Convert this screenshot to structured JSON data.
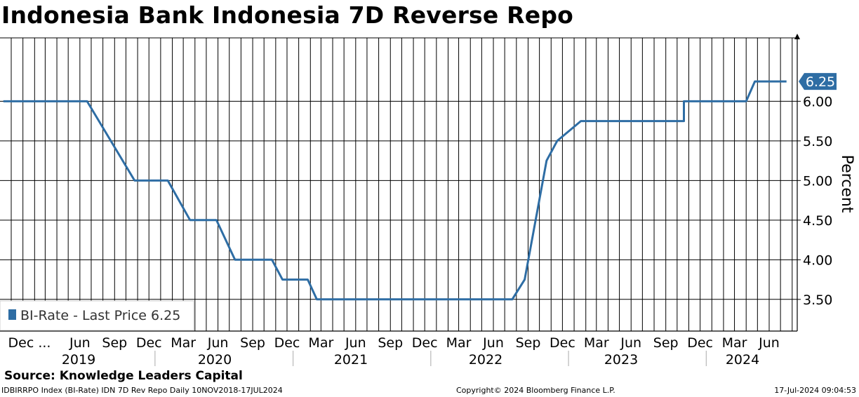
{
  "title": "Indonesia Bank Indonesia 7D Reverse Repo",
  "source": "Source: Knowledge Leaders Capital",
  "footer": {
    "left": "IDBIRRPO Index (BI-Rate) IDN 7D Rev Repo  Daily 10NOV2018-17JUL2024",
    "center": "Copyright© 2024 Bloomberg Finance L.P.",
    "right": "17-Jul-2024 09:04:53"
  },
  "colors": {
    "series": "#2e6da4",
    "grid": "#000000",
    "background": "#ffffff"
  },
  "chart_data": {
    "type": "line",
    "ylabel": "Percent",
    "ylim": [
      3.1,
      6.8
    ],
    "y_ticks": [
      "3.50",
      "4.00",
      "4.50",
      "5.00",
      "5.50",
      "6.00"
    ],
    "x_range": [
      "2018-11-10",
      "2024-07-17"
    ],
    "x_tick_labels": [
      {
        "label": "Dec ...",
        "date": "2018-12-01"
      },
      {
        "label": "Jun",
        "date": "2019-06-01"
      },
      {
        "label": "Sep",
        "date": "2019-09-01"
      },
      {
        "label": "Dec",
        "date": "2019-12-01"
      },
      {
        "label": "Mar",
        "date": "2020-03-01"
      },
      {
        "label": "Jun",
        "date": "2020-06-01"
      },
      {
        "label": "Sep",
        "date": "2020-09-01"
      },
      {
        "label": "Dec",
        "date": "2020-12-01"
      },
      {
        "label": "Mar",
        "date": "2021-03-01"
      },
      {
        "label": "Jun",
        "date": "2021-06-01"
      },
      {
        "label": "Sep",
        "date": "2021-09-01"
      },
      {
        "label": "Dec",
        "date": "2021-12-01"
      },
      {
        "label": "Mar",
        "date": "2022-03-01"
      },
      {
        "label": "Jun",
        "date": "2022-06-01"
      },
      {
        "label": "Sep",
        "date": "2022-09-01"
      },
      {
        "label": "Dec",
        "date": "2022-12-01"
      },
      {
        "label": "Mar",
        "date": "2023-03-01"
      },
      {
        "label": "Jun",
        "date": "2023-06-01"
      },
      {
        "label": "Sep",
        "date": "2023-09-01"
      },
      {
        "label": "Dec",
        "date": "2023-12-01"
      },
      {
        "label": "Mar",
        "date": "2024-03-01"
      },
      {
        "label": "Jun",
        "date": "2024-06-01"
      }
    ],
    "year_labels": [
      "2019",
      "2020",
      "2021",
      "2022",
      "2023",
      "2024"
    ],
    "legend": {
      "text": "BI-Rate - Last Price 6.25",
      "placement": "bottom-left"
    },
    "last_value_label": "6.25",
    "grid": true,
    "series": [
      {
        "name": "BI-Rate",
        "points": [
          {
            "x": "2018-11-10",
            "y": 6.0
          },
          {
            "x": "2019-06-20",
            "y": 6.0
          },
          {
            "x": "2019-10-24",
            "y": 5.0
          },
          {
            "x": "2020-01-20",
            "y": 5.0
          },
          {
            "x": "2020-03-19",
            "y": 4.5
          },
          {
            "x": "2020-05-28",
            "y": 4.5
          },
          {
            "x": "2020-07-16",
            "y": 4.0
          },
          {
            "x": "2020-10-22",
            "y": 4.0
          },
          {
            "x": "2020-11-19",
            "y": 3.75
          },
          {
            "x": "2021-01-25",
            "y": 3.75
          },
          {
            "x": "2021-02-18",
            "y": 3.5
          },
          {
            "x": "2022-07-21",
            "y": 3.5
          },
          {
            "x": "2022-08-23",
            "y": 3.75
          },
          {
            "x": "2022-10-20",
            "y": 5.25
          },
          {
            "x": "2022-11-17",
            "y": 5.5
          },
          {
            "x": "2023-01-19",
            "y": 5.75
          },
          {
            "x": "2023-10-19",
            "y": 5.75
          },
          {
            "x": "2023-10-19",
            "y": 6.0
          },
          {
            "x": "2024-04-01",
            "y": 6.0
          },
          {
            "x": "2024-04-24",
            "y": 6.25
          },
          {
            "x": "2024-07-17",
            "y": 6.25
          }
        ]
      }
    ]
  }
}
